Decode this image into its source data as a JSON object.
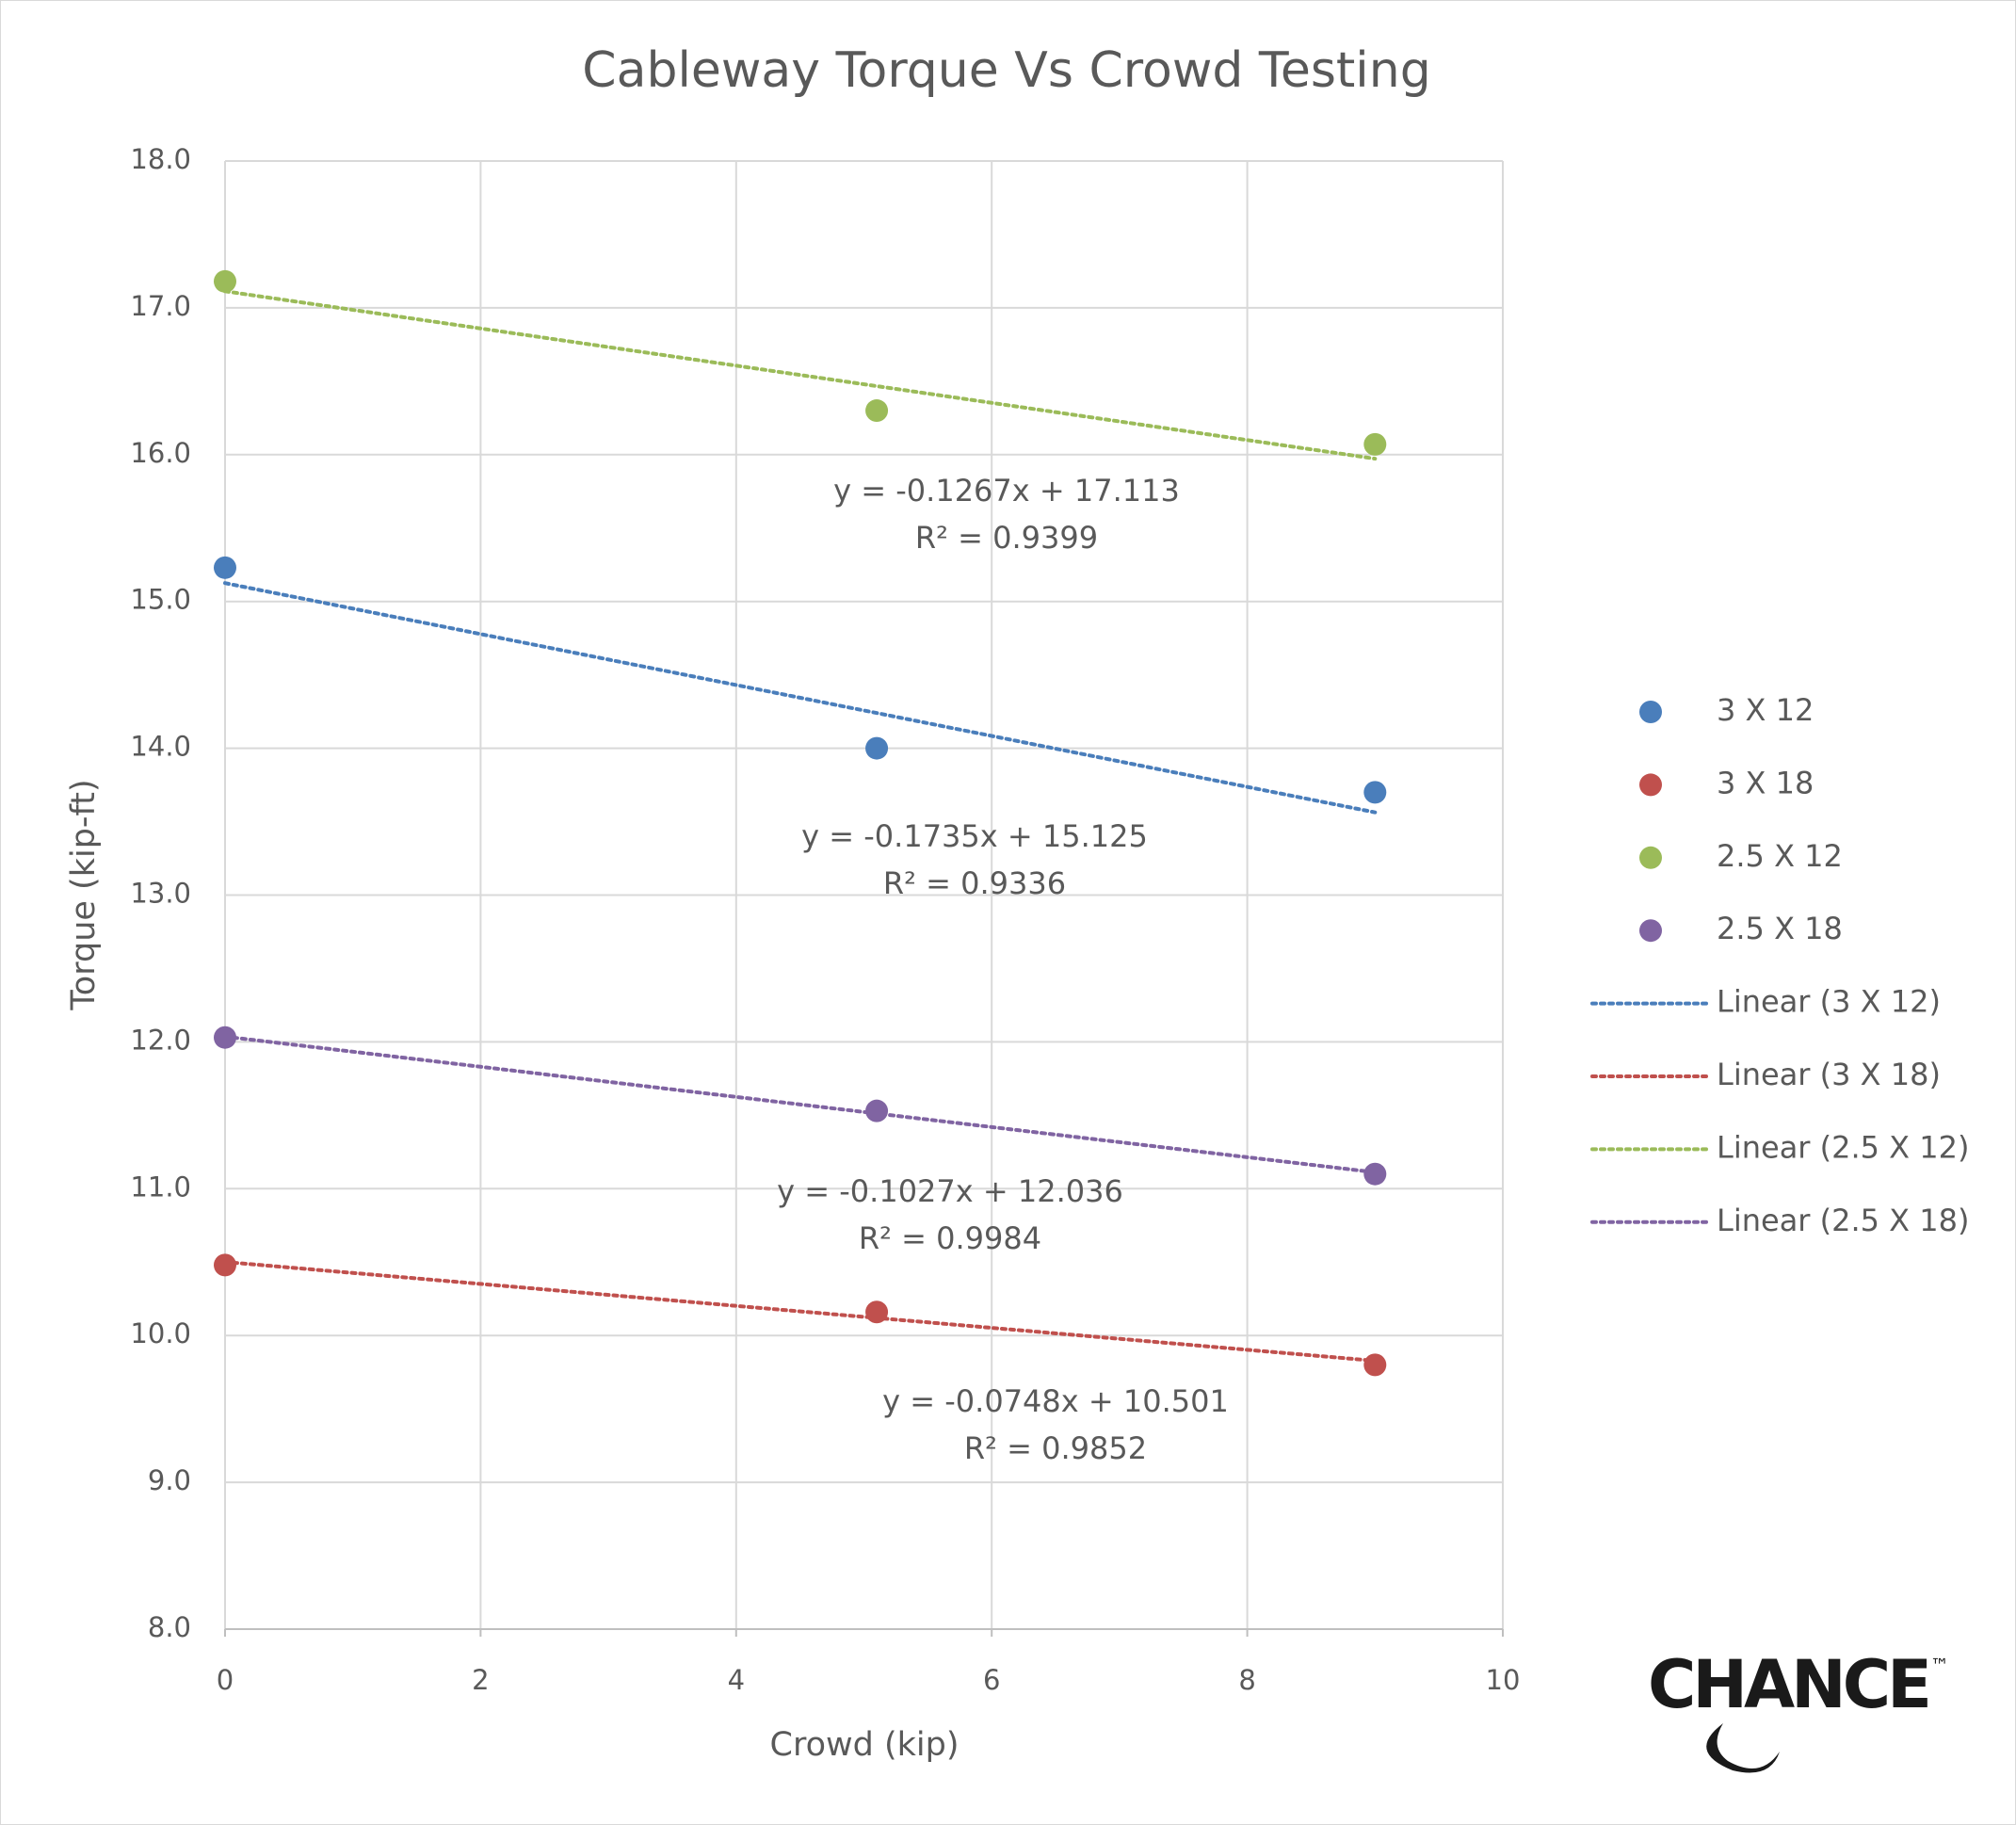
{
  "chart_data": {
    "type": "scatter",
    "title": "Cableway Torque Vs Crowd Testing",
    "x_label": "Crowd (kip)",
    "y_label": "Torque (kip-ft)",
    "x": [
      0,
      5.1,
      9
    ],
    "series": [
      {
        "name": "3 X 12",
        "color": "#4a7ebb",
        "values": [
          15.23,
          14.0,
          13.7
        ]
      },
      {
        "name": "3 X 18",
        "color": "#c0504d",
        "values": [
          10.48,
          10.16,
          9.8
        ]
      },
      {
        "name": "2.5 X 12",
        "color": "#9bbb59",
        "values": [
          17.18,
          16.3,
          16.07
        ]
      },
      {
        "name": "2.5 X 18",
        "color": "#8064a2",
        "values": [
          12.03,
          11.53,
          11.1
        ]
      }
    ],
    "trendlines": [
      {
        "name": "Linear (3 X 12)",
        "slope": -0.1735,
        "intercept": 15.125,
        "equation": "y = -0.1735x + 15.125",
        "r2_label": "R² = 0.9336"
      },
      {
        "name": "Linear (3 X 18)",
        "slope": -0.0748,
        "intercept": 10.501,
        "equation": "y = -0.0748x + 10.501",
        "r2_label": "R² = 0.9852"
      },
      {
        "name": "Linear (2.5 X 12)",
        "slope": -0.1267,
        "intercept": 17.113,
        "equation": "y = -0.1267x + 17.113",
        "r2_label": "R² = 0.9399"
      },
      {
        "name": "Linear (2.5 X 18)",
        "slope": -0.1027,
        "intercept": 12.036,
        "equation": "y = -0.1027x + 12.036",
        "r2_label": "R² = 0.9984"
      }
    ],
    "xlim": [
      0,
      10
    ],
    "xticks": [
      0,
      2,
      4,
      6,
      8,
      10
    ],
    "ylim": [
      8,
      18
    ],
    "yticks": [
      {
        "value": 8,
        "label": "8.0"
      },
      {
        "value": 9,
        "label": "9.0"
      },
      {
        "value": 10,
        "label": "10.0"
      },
      {
        "value": 11,
        "label": "11.0"
      },
      {
        "value": 12,
        "label": "12.0"
      },
      {
        "value": 13,
        "label": "13.0"
      },
      {
        "value": 14,
        "label": "14.0"
      },
      {
        "value": 15,
        "label": "15.0"
      },
      {
        "value": 16,
        "label": "16.0"
      },
      {
        "value": 17,
        "label": "17.0"
      },
      {
        "value": 18,
        "label": "18.0"
      }
    ],
    "grid": true,
    "legend": "right"
  },
  "logo": {
    "text": "CHANCE",
    "mark": "™"
  }
}
